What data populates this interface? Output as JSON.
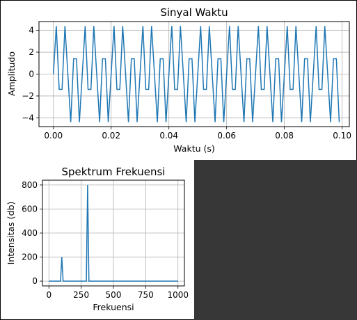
{
  "chart_data": [
    {
      "type": "line",
      "title": "Sinyal Waktu",
      "xlabel": "Waktu (s)",
      "ylabel": "Amplitudo",
      "xlim": [
        -0.005,
        0.1025
      ],
      "ylim": [
        -4.8,
        4.8
      ],
      "xticks": [
        "0.00",
        "0.02",
        "0.04",
        "0.06",
        "0.08",
        "0.10"
      ],
      "yticks": [
        "−4",
        "−2",
        "0",
        "2",
        "4"
      ],
      "grid": true,
      "series": [
        {
          "components": [
            {
              "amp": 1,
              "freq_hz": 100
            },
            {
              "amp": 4,
              "freq_hz": 300
            }
          ],
          "x_start": 0,
          "x_end": 0.099,
          "x_step": 0.001,
          "color": "#1f77b4"
        }
      ]
    },
    {
      "type": "line",
      "title": "Spektrum Frekuensi",
      "xlabel": "Frekuensi",
      "ylabel": "Intensitas (db)",
      "xlim": [
        -50,
        1050
      ],
      "ylim": [
        -40,
        840
      ],
      "xticks": [
        "0",
        "250",
        "500",
        "750",
        "1000"
      ],
      "yticks": [
        "0",
        "200",
        "400",
        "600",
        "800"
      ],
      "grid": true,
      "series": [
        {
          "x": [
            0,
            90,
            100,
            110,
            290,
            300,
            310,
            1000
          ],
          "y": [
            0,
            0,
            200,
            0,
            0,
            800,
            0,
            0
          ],
          "color": "#1f77b4"
        }
      ]
    }
  ]
}
